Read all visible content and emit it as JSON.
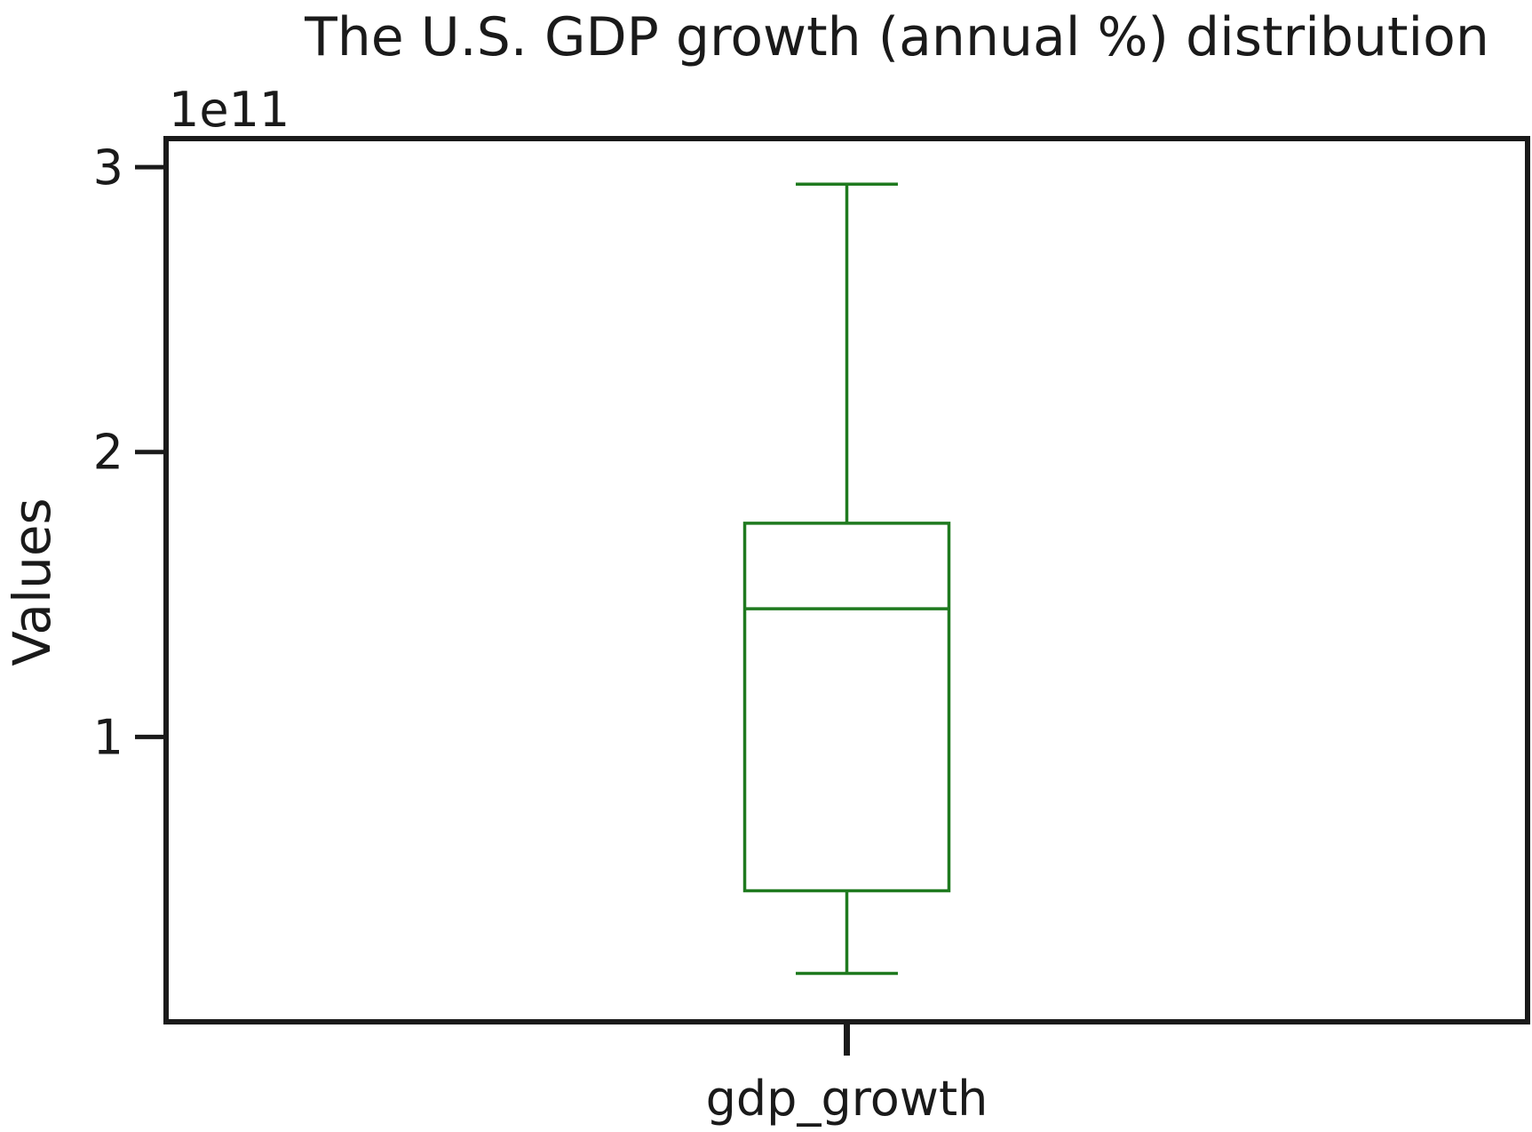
{
  "chart_data": {
    "type": "box",
    "title": "The U.S. GDP growth (annual %) distribution",
    "xlabel": "",
    "ylabel": "Values",
    "y_offset_label": "1e11",
    "y_multiplier": 100000000000,
    "ylim": [
      0.0,
      3.1
    ],
    "yticks": [
      1,
      2,
      3
    ],
    "ytick_labels": [
      "1",
      "2",
      "3"
    ],
    "grid": false,
    "categories": [
      "gdp_growth"
    ],
    "series": [
      {
        "category": "gdp_growth",
        "whisker_low": 0.17,
        "q1": 0.46,
        "median": 1.45,
        "q3": 1.75,
        "whisker_high": 2.94,
        "color": "#1f7a1f"
      }
    ]
  },
  "colors": {
    "box": "#1f7a1f",
    "axes": "#1a1a1a",
    "background": "#ffffff"
  }
}
